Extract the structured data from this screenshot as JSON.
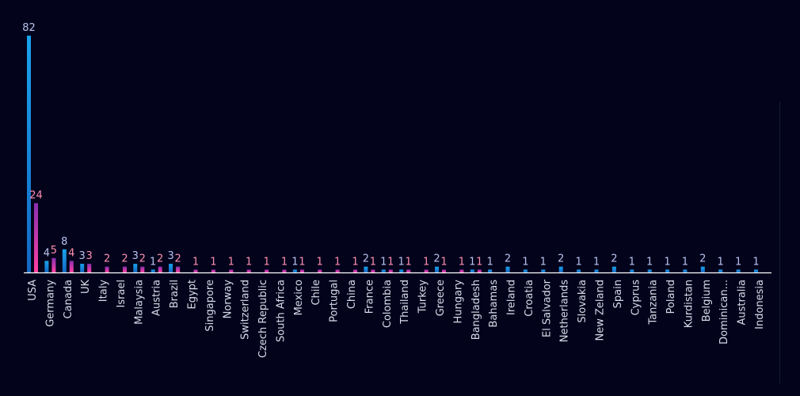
{
  "chart_data": {
    "type": "bar",
    "categories": [
      "USA",
      "Germany",
      "Canada",
      "UK",
      "Italy",
      "Israel",
      "Malaysia",
      "Austria",
      "Brazil",
      "Egypt",
      "Singapore",
      "Norway",
      "Switzerland",
      "Czech Republic",
      "South Africa",
      "Mexico",
      "Chile",
      "Portugal",
      "China",
      "France",
      "Colombia",
      "Thailand",
      "Turkey",
      "Greece",
      "Hungary",
      "Bangladesh",
      "Bahamas",
      "Ireland",
      "Croatia",
      "El Salvador",
      "Netherlands",
      "Slovakia",
      "New Zeland",
      "Spain",
      "Cyprus",
      "Tanzania",
      "Poland",
      "Kurdistan",
      "Belgium",
      "Dominican...",
      "Australia",
      "Indonesia"
    ],
    "series": [
      {
        "values": [
          82,
          4,
          8,
          3,
          0,
          0,
          3,
          1,
          3,
          0,
          0,
          0,
          0,
          0,
          0,
          1,
          0,
          0,
          0,
          2,
          1,
          1,
          0,
          2,
          0,
          1,
          1,
          2,
          1,
          1,
          2,
          1,
          1,
          2,
          1,
          1,
          1,
          1,
          2,
          1,
          1,
          1
        ]
      },
      {
        "values": [
          24,
          5,
          4,
          3,
          2,
          2,
          2,
          2,
          2,
          1,
          1,
          1,
          1,
          1,
          1,
          1,
          1,
          1,
          1,
          1,
          1,
          1,
          1,
          1,
          1,
          1,
          0,
          0,
          0,
          0,
          0,
          0,
          0,
          0,
          0,
          0,
          0,
          0,
          0,
          0,
          0,
          0
        ]
      }
    ],
    "colors": {
      "series1_top": "#1aa3ec",
      "series1_bottom": "#1468c4",
      "series2_top": "#8a2fb0",
      "series2_bottom": "#ff3fa0",
      "series1_label": "#b9c3ee",
      "series2_label": "#ff8fb0",
      "axis": "#ffffff"
    },
    "ylim": [
      0,
      82
    ],
    "grid": false,
    "legend": "none"
  }
}
